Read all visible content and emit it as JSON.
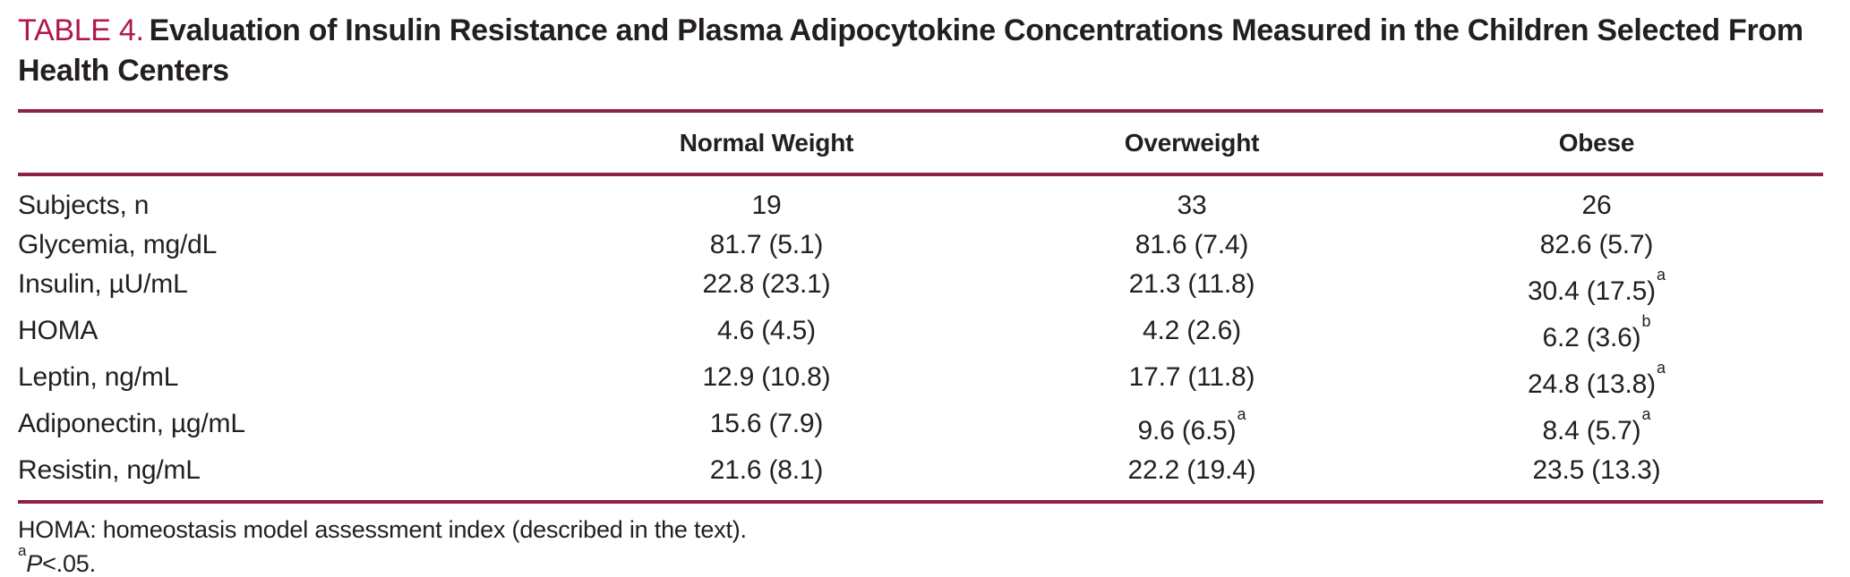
{
  "colors": {
    "accent": "#b01846",
    "rule": "#8e2245",
    "text": "#231f20"
  },
  "title": {
    "label": "TABLE 4.",
    "text": "Evaluation of Insulin Resistance and Plasma Adipocytokine Concentrations Measured in the Children Selected From Health Centers"
  },
  "table": {
    "columns": [
      "",
      "Normal Weight",
      "Overweight",
      "Obese"
    ],
    "rows": [
      {
        "label": "Subjects, n",
        "cells": [
          {
            "text": "19"
          },
          {
            "text": "33"
          },
          {
            "text": "26"
          }
        ]
      },
      {
        "label": "Glycemia, mg/dL",
        "cells": [
          {
            "text": "81.7 (5.1)"
          },
          {
            "text": "81.6 (7.4)"
          },
          {
            "text": "82.6 (5.7)"
          }
        ]
      },
      {
        "label": "Insulin, µU/mL",
        "cells": [
          {
            "text": "22.8 (23.1)"
          },
          {
            "text": "21.3 (11.8)"
          },
          {
            "text": "30.4 (17.5)",
            "sup": "a"
          }
        ]
      },
      {
        "label": "HOMA",
        "cells": [
          {
            "text": "4.6 (4.5)"
          },
          {
            "text": "4.2 (2.6)"
          },
          {
            "text": "6.2 (3.6)",
            "sup": "b"
          }
        ]
      },
      {
        "label": "Leptin, ng/mL",
        "cells": [
          {
            "text": "12.9 (10.8)"
          },
          {
            "text": "17.7 (11.8)"
          },
          {
            "text": "24.8 (13.8)",
            "sup": "a"
          }
        ]
      },
      {
        "label": "Adiponectin, µg/mL",
        "cells": [
          {
            "text": "15.6 (7.9)"
          },
          {
            "text": "9.6 (6.5)",
            "sup": "a"
          },
          {
            "text": "8.4 (5.7)",
            "sup": "a"
          }
        ]
      },
      {
        "label": "Resistin, ng/mL",
        "cells": [
          {
            "text": "21.6 (8.1)"
          },
          {
            "text": "22.2 (19.4)"
          },
          {
            "text": "23.5 (13.3)"
          }
        ]
      }
    ]
  },
  "footnotes": {
    "homa": "HOMA: homeostasis model assessment index (described in the text).",
    "significance": {
      "sup": "a",
      "italic": "P",
      "rest": "<.05."
    }
  }
}
